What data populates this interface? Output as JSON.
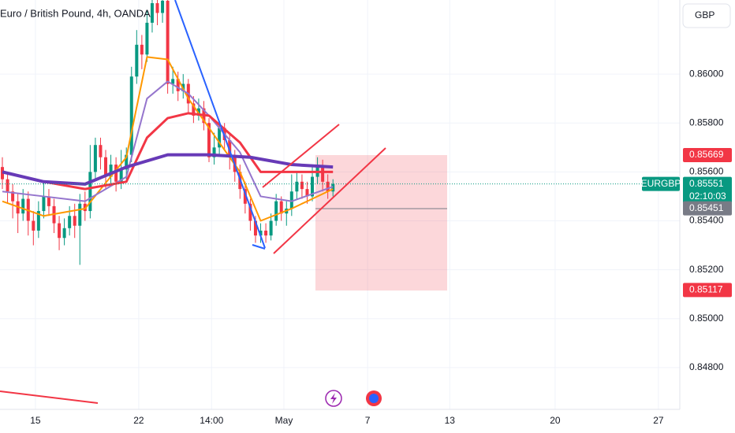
{
  "chart_data": {
    "type": "candlestick",
    "title": "Euro / British Pound, 4h, OANDA",
    "currency": "GBP",
    "up_color": "#089981",
    "down_color": "#f23645",
    "open": [
      0.8562,
      0.8557,
      0.8552,
      0.8548,
      0.8543,
      0.8549,
      0.854,
      0.8536,
      0.8544,
      0.855,
      0.8546,
      0.8539,
      0.8533,
      0.8537,
      0.8542,
      0.8538,
      0.8547,
      0.8544,
      0.856,
      0.8571,
      0.8566,
      0.8558,
      0.8563,
      0.8556,
      0.8561,
      0.8567,
      0.8599,
      0.8612,
      0.8608,
      0.8621,
      0.8629,
      0.8625,
      0.863,
      0.8596,
      0.8598,
      0.8593,
      0.8596,
      0.8588,
      0.8583,
      0.8586,
      0.858,
      0.8566,
      0.857,
      0.8578,
      0.8573,
      0.8566,
      0.856,
      0.8553,
      0.8547,
      0.854,
      0.8534,
      0.8536,
      0.8534,
      0.854,
      0.8548,
      0.8543,
      0.8545,
      0.8552,
      0.8556,
      0.8553,
      0.855,
      0.8558,
      0.8562,
      0.8556,
      0.8552
    ],
    "high": [
      0.8566,
      0.856,
      0.8555,
      0.8551,
      0.8553,
      0.8552,
      0.8544,
      0.8548,
      0.8556,
      0.8553,
      0.8549,
      0.8542,
      0.8541,
      0.8546,
      0.8547,
      0.8551,
      0.8552,
      0.8571,
      0.8574,
      0.8574,
      0.8569,
      0.8567,
      0.8566,
      0.8569,
      0.857,
      0.8603,
      0.8618,
      0.8616,
      0.8626,
      0.8634,
      0.8634,
      0.8634,
      0.8633,
      0.8603,
      0.8601,
      0.86,
      0.8598,
      0.8591,
      0.859,
      0.8589,
      0.8582,
      0.8576,
      0.8581,
      0.858,
      0.8576,
      0.8569,
      0.8563,
      0.8556,
      0.8549,
      0.8542,
      0.8539,
      0.8539,
      0.8543,
      0.8551,
      0.855,
      0.8548,
      0.8559,
      0.856,
      0.8559,
      0.8556,
      0.8562,
      0.8566,
      0.8565,
      0.8559,
      0.8557
    ],
    "low": [
      0.8553,
      0.8547,
      0.8541,
      0.8535,
      0.854,
      0.8534,
      0.853,
      0.8533,
      0.8541,
      0.8542,
      0.8535,
      0.8528,
      0.853,
      0.8534,
      0.8533,
      0.8522,
      0.854,
      0.8541,
      0.8557,
      0.8561,
      0.8553,
      0.8555,
      0.8552,
      0.8553,
      0.8557,
      0.8564,
      0.8596,
      0.8602,
      0.8605,
      0.8617,
      0.862,
      0.8621,
      0.8592,
      0.8592,
      0.8589,
      0.859,
      0.8584,
      0.858,
      0.8581,
      0.8577,
      0.8564,
      0.8563,
      0.8567,
      0.8569,
      0.8561,
      0.8556,
      0.8549,
      0.8543,
      0.8536,
      0.8531,
      0.8531,
      0.8531,
      0.8532,
      0.8538,
      0.854,
      0.8538,
      0.8542,
      0.8549,
      0.8549,
      0.8547,
      0.8548,
      0.8555,
      0.8552,
      0.8549,
      0.855
    ],
    "close": [
      0.8557,
      0.8552,
      0.8548,
      0.8543,
      0.8549,
      0.854,
      0.8536,
      0.8544,
      0.855,
      0.8546,
      0.8539,
      0.8533,
      0.8537,
      0.8542,
      0.8538,
      0.8547,
      0.8544,
      0.856,
      0.8571,
      0.8566,
      0.8558,
      0.8563,
      0.8556,
      0.8561,
      0.8567,
      0.8599,
      0.8612,
      0.8608,
      0.8621,
      0.8629,
      0.8625,
      0.863,
      0.8596,
      0.8598,
      0.8593,
      0.8596,
      0.8588,
      0.8583,
      0.8586,
      0.858,
      0.8566,
      0.857,
      0.8578,
      0.8573,
      0.8566,
      0.856,
      0.8553,
      0.8547,
      0.854,
      0.8534,
      0.8536,
      0.8534,
      0.854,
      0.8548,
      0.8543,
      0.8545,
      0.8552,
      0.8556,
      0.8553,
      0.855,
      0.8558,
      0.8562,
      0.8556,
      0.8552,
      0.85551
    ],
    "overlays": [
      {
        "color": "#ff9800",
        "width": 2,
        "x": [
          0,
          8,
          16,
          24,
          28,
          32,
          36,
          40,
          46,
          50,
          56,
          64
        ],
        "values": [
          0.8548,
          0.8542,
          0.8545,
          0.8566,
          0.8607,
          0.8606,
          0.859,
          0.8578,
          0.856,
          0.854,
          0.8545,
          0.8553
        ]
      },
      {
        "color": "#9575cd",
        "width": 2,
        "x": [
          0,
          8,
          16,
          24,
          28,
          32,
          36,
          40,
          46,
          50,
          56,
          64
        ],
        "values": [
          0.8552,
          0.855,
          0.8548,
          0.8558,
          0.859,
          0.8597,
          0.8592,
          0.8583,
          0.8568,
          0.855,
          0.8548,
          0.8554
        ]
      },
      {
        "color": "#f23645",
        "width": 3,
        "x": [
          0,
          8,
          16,
          24,
          28,
          32,
          36,
          40,
          46,
          50,
          56,
          64
        ],
        "values": [
          0.856,
          0.8556,
          0.8553,
          0.8556,
          0.8574,
          0.8582,
          0.8584,
          0.8583,
          0.8572,
          0.856,
          0.856,
          0.856
        ]
      },
      {
        "color": "#673ab7",
        "width": 4,
        "x": [
          0,
          8,
          16,
          24,
          32,
          40,
          48,
          56,
          64
        ],
        "values": [
          0.856,
          0.8556,
          0.8555,
          0.8562,
          0.8567,
          0.8567,
          0.8566,
          0.8563,
          0.8562
        ]
      }
    ],
    "xlim": [
      -0.46,
      131.14
    ],
    "xticks": [
      {
        "value": 6.4,
        "label": "15"
      },
      {
        "value": 26.4,
        "label": "22"
      },
      {
        "value": 40.5,
        "label": "14:00"
      },
      {
        "value": 54.5,
        "label": "May"
      },
      {
        "value": 70.7,
        "label": "7"
      },
      {
        "value": 86.6,
        "label": "13"
      },
      {
        "value": 107,
        "label": "20"
      },
      {
        "value": 127,
        "label": "27"
      }
    ],
    "ylim": [
      0.84629,
      0.86303
    ],
    "yticks": [
      {
        "value": 0.86,
        "label": "0.86000"
      },
      {
        "value": 0.858,
        "label": "0.85800"
      },
      {
        "value": 0.856,
        "label": "0.85600"
      },
      {
        "value": 0.854,
        "label": "0.85400"
      },
      {
        "value": 0.852,
        "label": "0.85200"
      },
      {
        "value": 0.85,
        "label": "0.85000"
      },
      {
        "value": 0.848,
        "label": "0.84800"
      }
    ],
    "price_labels": [
      {
        "value": 0.85669,
        "color": "#f23645"
      },
      {
        "value": 0.85451,
        "color": "#787b86"
      },
      {
        "value": 0.85117,
        "color": "#f23645"
      }
    ],
    "last_price": {
      "symbol": "EURGBP",
      "value": 0.85551,
      "countdown": "02:10:03",
      "color": "#089981"
    }
  }
}
